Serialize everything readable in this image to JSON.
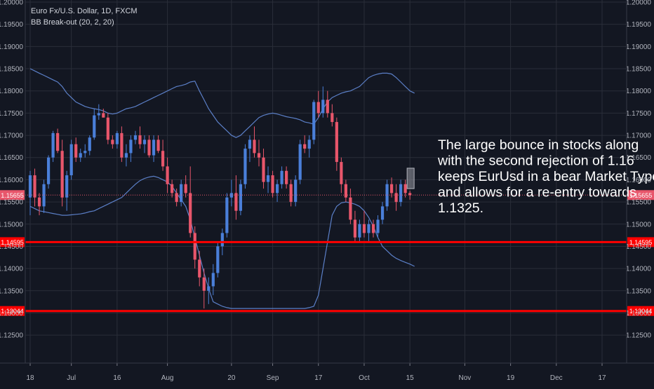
{
  "header": {
    "symbol_line": "Euro Fx/U.S. Dollar, 1D, FXCM",
    "indicator_line": "BB Break-out (20, 2, 20)"
  },
  "annotation": {
    "lines": [
      "The large bounce in stocks along",
      "with the second rejection of 1.16",
      "keeps EurUsd in a bear Market Type",
      "and allows for a re-entry towards",
      "1.1325."
    ]
  },
  "colors": {
    "background": "#131722",
    "grid": "#2a2e39",
    "up": "#4a7fd9",
    "down": "#e8566b",
    "band": "#5b7fc7",
    "level": "#ff0000",
    "current_line": "#e8566b",
    "axis_text": "#b2b5be"
  },
  "chart_data": {
    "type": "candlestick",
    "title": "Euro Fx/U.S. Dollar, 1D, FXCM",
    "indicator": "BB Break-out (20, 2, 20)",
    "ylim": [
      1.12,
      1.2
    ],
    "y_ticks": [
      "1.20000",
      "1.19500",
      "1.19000",
      "1.18500",
      "1.18000",
      "1.17500",
      "1.17000",
      "1.16500",
      "1.16000",
      "1.15500",
      "1.15000",
      "1.14500",
      "1.14000",
      "1.13500",
      "1.13000",
      "1.12500"
    ],
    "x_ticks": [
      {
        "label": "18",
        "index": 0
      },
      {
        "label": "Jul",
        "index": 9
      },
      {
        "label": "16",
        "index": 19
      },
      {
        "label": "Aug",
        "index": 30
      },
      {
        "label": "20",
        "index": 44
      },
      {
        "label": "Sep",
        "index": 53
      },
      {
        "label": "17",
        "index": 63
      },
      {
        "label": "Oct",
        "index": 73
      },
      {
        "label": "15",
        "index": 83
      },
      {
        "label": "Nov",
        "index": 95
      },
      {
        "label": "19",
        "index": 105
      },
      {
        "label": "Dec",
        "index": 115
      },
      {
        "label": "17",
        "index": 125
      }
    ],
    "levels": [
      {
        "label": "1.14595",
        "value": 1.14595
      },
      {
        "label": "1.13044",
        "value": 1.13044
      }
    ],
    "current_price": {
      "label": "1.15655",
      "value": 1.15655
    },
    "candles": [
      {
        "o": 1.156,
        "h": 1.162,
        "l": 1.152,
        "c": 1.161
      },
      {
        "o": 1.161,
        "h": 1.1625,
        "l": 1.154,
        "c": 1.156
      },
      {
        "o": 1.156,
        "h": 1.157,
        "l": 1.152,
        "c": 1.154
      },
      {
        "o": 1.154,
        "h": 1.16,
        "l": 1.1525,
        "c": 1.159
      },
      {
        "o": 1.159,
        "h": 1.1655,
        "l": 1.158,
        "c": 1.165
      },
      {
        "o": 1.165,
        "h": 1.171,
        "l": 1.164,
        "c": 1.1705
      },
      {
        "o": 1.1705,
        "h": 1.1715,
        "l": 1.166,
        "c": 1.1665
      },
      {
        "o": 1.1665,
        "h": 1.169,
        "l": 1.154,
        "c": 1.156
      },
      {
        "o": 1.156,
        "h": 1.162,
        "l": 1.153,
        "c": 1.161
      },
      {
        "o": 1.161,
        "h": 1.169,
        "l": 1.16,
        "c": 1.168
      },
      {
        "o": 1.168,
        "h": 1.1695,
        "l": 1.164,
        "c": 1.165
      },
      {
        "o": 1.165,
        "h": 1.167,
        "l": 1.164,
        "c": 1.166
      },
      {
        "o": 1.166,
        "h": 1.168,
        "l": 1.165,
        "c": 1.1665
      },
      {
        "o": 1.1665,
        "h": 1.17,
        "l": 1.1655,
        "c": 1.1695
      },
      {
        "o": 1.1695,
        "h": 1.176,
        "l": 1.169,
        "c": 1.1745
      },
      {
        "o": 1.1745,
        "h": 1.177,
        "l": 1.1735,
        "c": 1.175
      },
      {
        "o": 1.175,
        "h": 1.176,
        "l": 1.174,
        "c": 1.174
      },
      {
        "o": 1.174,
        "h": 1.175,
        "l": 1.168,
        "c": 1.169
      },
      {
        "o": 1.169,
        "h": 1.17,
        "l": 1.167,
        "c": 1.168
      },
      {
        "o": 1.168,
        "h": 1.171,
        "l": 1.167,
        "c": 1.1705
      },
      {
        "o": 1.1705,
        "h": 1.172,
        "l": 1.164,
        "c": 1.165
      },
      {
        "o": 1.165,
        "h": 1.168,
        "l": 1.163,
        "c": 1.166
      },
      {
        "o": 1.166,
        "h": 1.17,
        "l": 1.164,
        "c": 1.169
      },
      {
        "o": 1.169,
        "h": 1.171,
        "l": 1.168,
        "c": 1.17
      },
      {
        "o": 1.17,
        "h": 1.172,
        "l": 1.167,
        "c": 1.168
      },
      {
        "o": 1.168,
        "h": 1.17,
        "l": 1.166,
        "c": 1.169
      },
      {
        "o": 1.169,
        "h": 1.17,
        "l": 1.165,
        "c": 1.1655
      },
      {
        "o": 1.1655,
        "h": 1.17,
        "l": 1.164,
        "c": 1.169
      },
      {
        "o": 1.169,
        "h": 1.17,
        "l": 1.166,
        "c": 1.1665
      },
      {
        "o": 1.1665,
        "h": 1.169,
        "l": 1.162,
        "c": 1.163
      },
      {
        "o": 1.163,
        "h": 1.165,
        "l": 1.157,
        "c": 1.159
      },
      {
        "o": 1.159,
        "h": 1.16,
        "l": 1.156,
        "c": 1.157
      },
      {
        "o": 1.157,
        "h": 1.158,
        "l": 1.154,
        "c": 1.155
      },
      {
        "o": 1.155,
        "h": 1.16,
        "l": 1.154,
        "c": 1.159
      },
      {
        "o": 1.159,
        "h": 1.161,
        "l": 1.156,
        "c": 1.157
      },
      {
        "o": 1.157,
        "h": 1.163,
        "l": 1.147,
        "c": 1.148
      },
      {
        "o": 1.148,
        "h": 1.1495,
        "l": 1.14,
        "c": 1.142
      },
      {
        "o": 1.142,
        "h": 1.144,
        "l": 1.136,
        "c": 1.138
      },
      {
        "o": 1.138,
        "h": 1.14,
        "l": 1.131,
        "c": 1.135
      },
      {
        "o": 1.135,
        "h": 1.138,
        "l": 1.132,
        "c": 1.136
      },
      {
        "o": 1.136,
        "h": 1.141,
        "l": 1.134,
        "c": 1.139
      },
      {
        "o": 1.139,
        "h": 1.146,
        "l": 1.138,
        "c": 1.145
      },
      {
        "o": 1.145,
        "h": 1.149,
        "l": 1.143,
        "c": 1.148
      },
      {
        "o": 1.148,
        "h": 1.157,
        "l": 1.147,
        "c": 1.156
      },
      {
        "o": 1.156,
        "h": 1.16,
        "l": 1.154,
        "c": 1.157
      },
      {
        "o": 1.157,
        "h": 1.161,
        "l": 1.151,
        "c": 1.153
      },
      {
        "o": 1.153,
        "h": 1.16,
        "l": 1.152,
        "c": 1.159
      },
      {
        "o": 1.159,
        "h": 1.168,
        "l": 1.158,
        "c": 1.167
      },
      {
        "o": 1.167,
        "h": 1.17,
        "l": 1.164,
        "c": 1.169
      },
      {
        "o": 1.169,
        "h": 1.172,
        "l": 1.165,
        "c": 1.166
      },
      {
        "o": 1.166,
        "h": 1.169,
        "l": 1.163,
        "c": 1.165
      },
      {
        "o": 1.165,
        "h": 1.167,
        "l": 1.158,
        "c": 1.1595
      },
      {
        "o": 1.1595,
        "h": 1.163,
        "l": 1.157,
        "c": 1.161
      },
      {
        "o": 1.161,
        "h": 1.162,
        "l": 1.156,
        "c": 1.157
      },
      {
        "o": 1.157,
        "h": 1.16,
        "l": 1.155,
        "c": 1.159
      },
      {
        "o": 1.159,
        "h": 1.163,
        "l": 1.158,
        "c": 1.162
      },
      {
        "o": 1.162,
        "h": 1.163,
        "l": 1.158,
        "c": 1.159
      },
      {
        "o": 1.159,
        "h": 1.16,
        "l": 1.154,
        "c": 1.155
      },
      {
        "o": 1.155,
        "h": 1.161,
        "l": 1.154,
        "c": 1.16
      },
      {
        "o": 1.16,
        "h": 1.169,
        "l": 1.159,
        "c": 1.168
      },
      {
        "o": 1.168,
        "h": 1.17,
        "l": 1.166,
        "c": 1.167
      },
      {
        "o": 1.167,
        "h": 1.17,
        "l": 1.165,
        "c": 1.169
      },
      {
        "o": 1.169,
        "h": 1.178,
        "l": 1.168,
        "c": 1.1775
      },
      {
        "o": 1.1775,
        "h": 1.18,
        "l": 1.174,
        "c": 1.175
      },
      {
        "o": 1.175,
        "h": 1.181,
        "l": 1.174,
        "c": 1.178
      },
      {
        "o": 1.178,
        "h": 1.18,
        "l": 1.174,
        "c": 1.175
      },
      {
        "o": 1.175,
        "h": 1.177,
        "l": 1.172,
        "c": 1.173
      },
      {
        "o": 1.173,
        "h": 1.174,
        "l": 1.162,
        "c": 1.164
      },
      {
        "o": 1.164,
        "h": 1.165,
        "l": 1.157,
        "c": 1.159
      },
      {
        "o": 1.159,
        "h": 1.16,
        "l": 1.155,
        "c": 1.156
      },
      {
        "o": 1.156,
        "h": 1.158,
        "l": 1.15,
        "c": 1.151
      },
      {
        "o": 1.151,
        "h": 1.153,
        "l": 1.146,
        "c": 1.147
      },
      {
        "o": 1.147,
        "h": 1.151,
        "l": 1.146,
        "c": 1.15
      },
      {
        "o": 1.15,
        "h": 1.153,
        "l": 1.147,
        "c": 1.148
      },
      {
        "o": 1.148,
        "h": 1.151,
        "l": 1.146,
        "c": 1.15
      },
      {
        "o": 1.15,
        "h": 1.151,
        "l": 1.147,
        "c": 1.148
      },
      {
        "o": 1.148,
        "h": 1.152,
        "l": 1.147,
        "c": 1.151
      },
      {
        "o": 1.151,
        "h": 1.155,
        "l": 1.15,
        "c": 1.154
      },
      {
        "o": 1.154,
        "h": 1.16,
        "l": 1.153,
        "c": 1.159
      },
      {
        "o": 1.159,
        "h": 1.1605,
        "l": 1.156,
        "c": 1.157
      },
      {
        "o": 1.157,
        "h": 1.159,
        "l": 1.153,
        "c": 1.155
      },
      {
        "o": 1.155,
        "h": 1.16,
        "l": 1.154,
        "c": 1.159
      },
      {
        "o": 1.159,
        "h": 1.16,
        "l": 1.156,
        "c": 1.157
      },
      {
        "o": 1.157,
        "h": 1.1575,
        "l": 1.1555,
        "c": 1.15655
      }
    ],
    "bands": {
      "upper": [
        1.185,
        1.1845,
        1.184,
        1.1835,
        1.183,
        1.1825,
        1.182,
        1.181,
        1.1795,
        1.1785,
        1.1775,
        1.177,
        1.1765,
        1.1762,
        1.176,
        1.1758,
        1.1755,
        1.175,
        1.1748,
        1.175,
        1.1755,
        1.176,
        1.1762,
        1.1765,
        1.177,
        1.1775,
        1.178,
        1.1785,
        1.179,
        1.1795,
        1.18,
        1.1805,
        1.181,
        1.1812,
        1.1815,
        1.182,
        1.1822,
        1.18,
        1.178,
        1.176,
        1.1745,
        1.173,
        1.172,
        1.171,
        1.17,
        1.1695,
        1.17,
        1.171,
        1.172,
        1.173,
        1.174,
        1.1745,
        1.1748,
        1.175,
        1.1748,
        1.1745,
        1.1742,
        1.174,
        1.1738,
        1.1735,
        1.173,
        1.1728,
        1.1725,
        1.174,
        1.176,
        1.1775,
        1.1785,
        1.179,
        1.1795,
        1.1798,
        1.18,
        1.1805,
        1.181,
        1.182,
        1.183,
        1.1835,
        1.1838,
        1.184,
        1.184,
        1.1838,
        1.183,
        1.182,
        1.181,
        1.18,
        1.1795
      ],
      "lower": [
        1.154,
        1.1535,
        1.153,
        1.1528,
        1.1526,
        1.1524,
        1.1522,
        1.152,
        1.152,
        1.1521,
        1.1522,
        1.1523,
        1.1525,
        1.1528,
        1.153,
        1.1535,
        1.154,
        1.1545,
        1.155,
        1.1555,
        1.156,
        1.157,
        1.158,
        1.159,
        1.1598,
        1.1603,
        1.1606,
        1.1608,
        1.1605,
        1.16,
        1.1595,
        1.1585,
        1.157,
        1.1555,
        1.154,
        1.151,
        1.147,
        1.143,
        1.139,
        1.1355,
        1.1325,
        1.132,
        1.1315,
        1.1312,
        1.131,
        1.131,
        1.131,
        1.131,
        1.131,
        1.131,
        1.131,
        1.131,
        1.131,
        1.131,
        1.131,
        1.131,
        1.131,
        1.131,
        1.131,
        1.131,
        1.131,
        1.1312,
        1.1315,
        1.134,
        1.14,
        1.146,
        1.152,
        1.154,
        1.1548,
        1.155,
        1.1548,
        1.1545,
        1.154,
        1.153,
        1.1515,
        1.1495,
        1.147,
        1.145,
        1.144,
        1.143,
        1.1423,
        1.1418,
        1.1414,
        1.141,
        1.1405
      ]
    }
  }
}
